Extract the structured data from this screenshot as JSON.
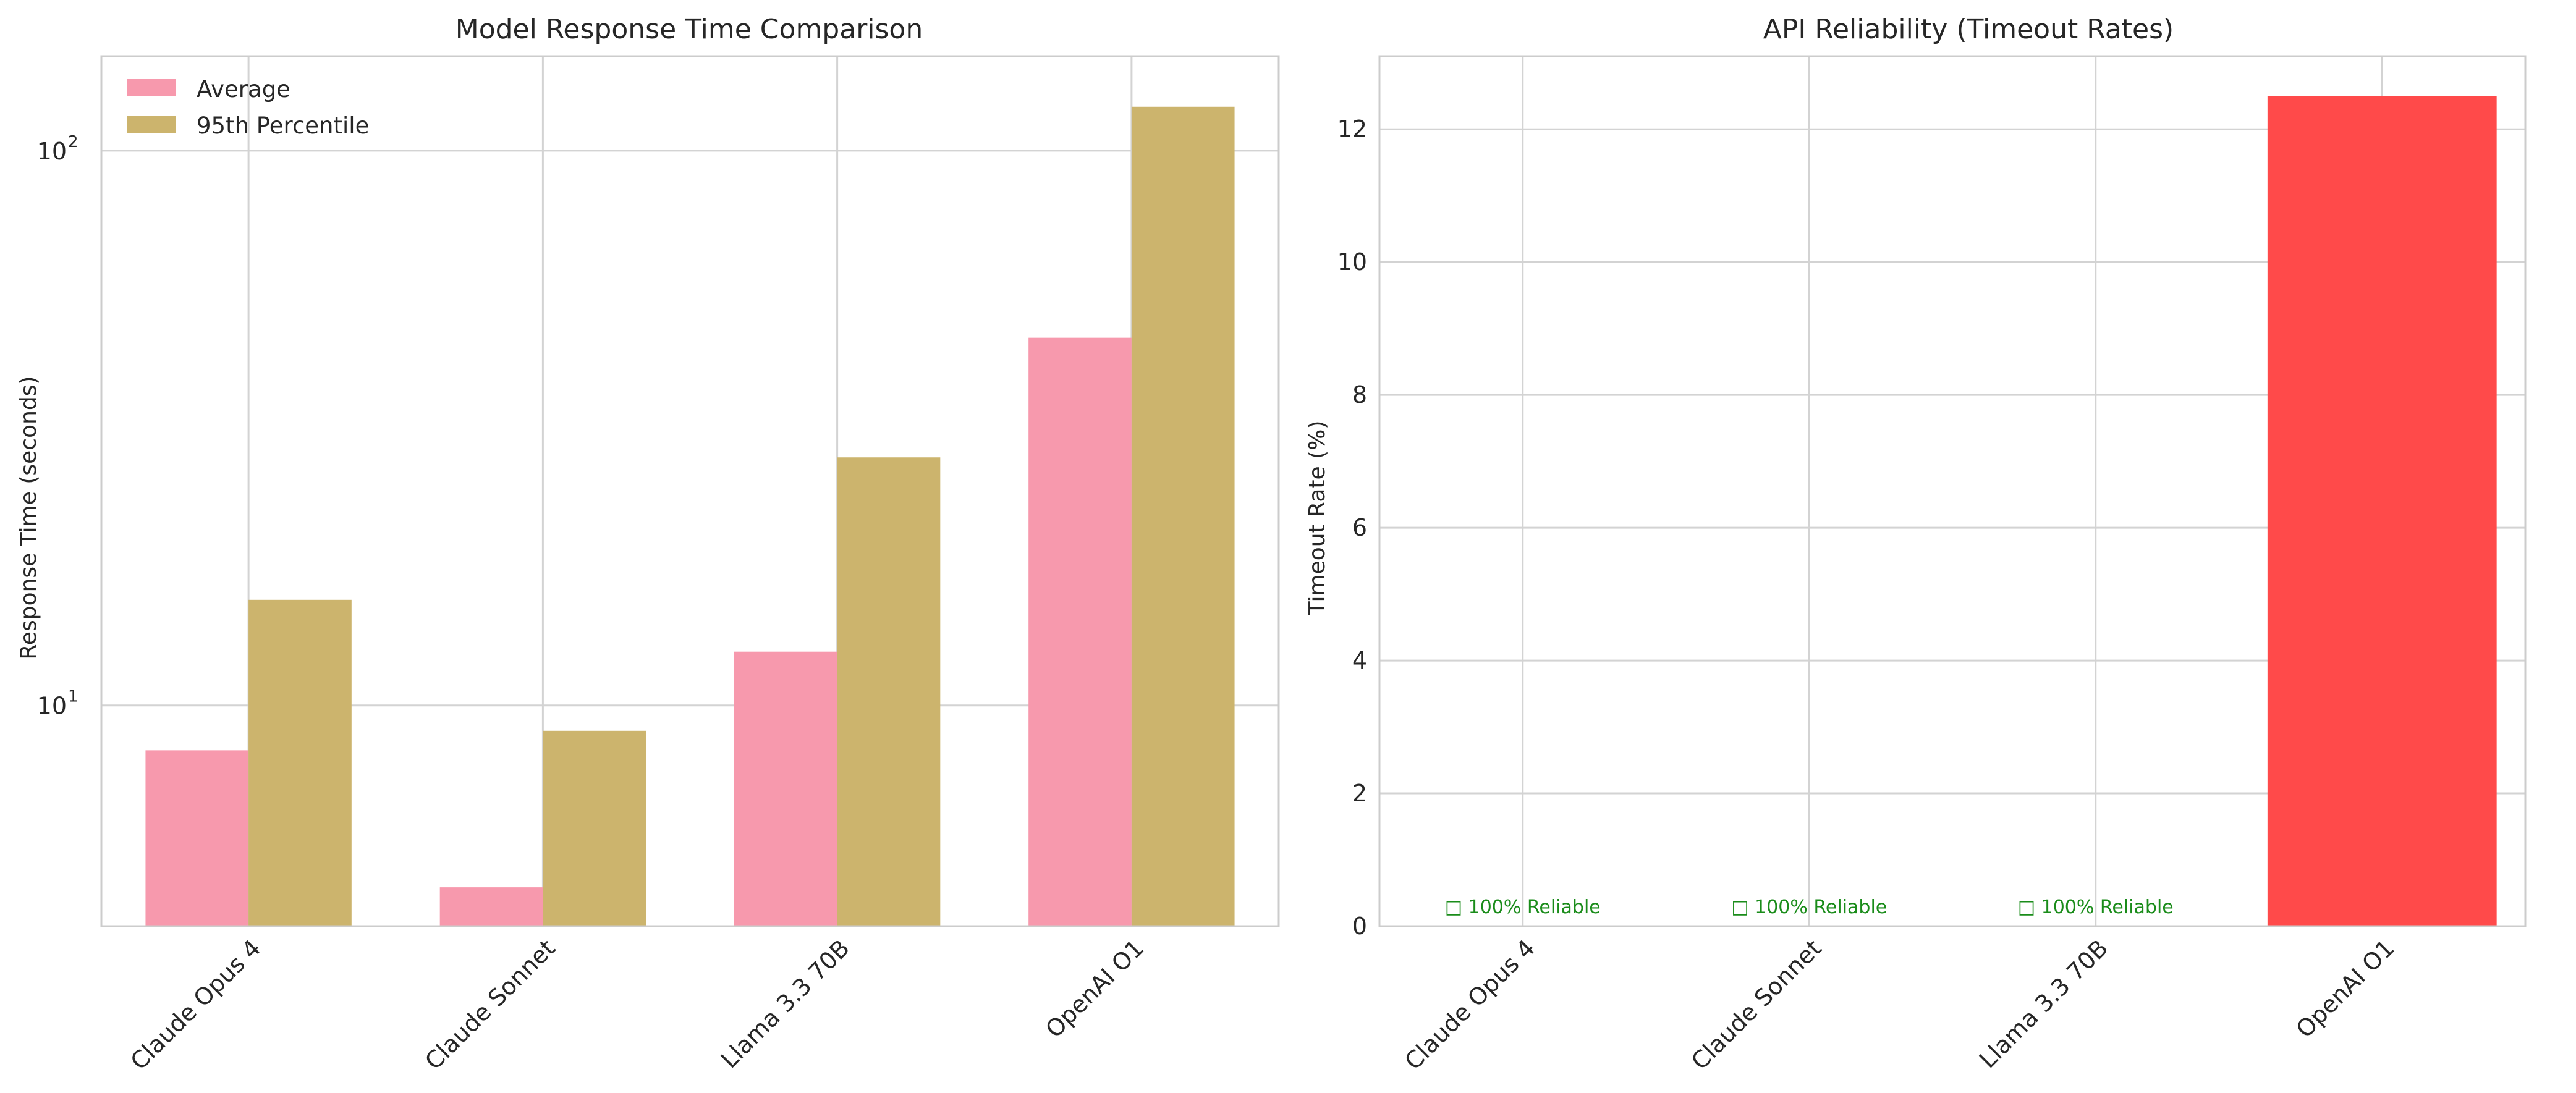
{
  "chart_data": [
    {
      "type": "bar",
      "title": "Model Response Time Comparison",
      "xlabel": "",
      "ylabel": "Response Time (seconds)",
      "yscale": "log",
      "ylim": [
        4,
        148
      ],
      "grid": true,
      "legend_position": "top-left",
      "categories": [
        "Claude Opus 4",
        "Claude Sonnet",
        "Llama 3.3 70B",
        "OpenAI O1"
      ],
      "y_ticks": [
        {
          "value": 10,
          "base": "10",
          "exp": "1"
        },
        {
          "value": 100,
          "base": "10",
          "exp": "2"
        }
      ],
      "series": [
        {
          "name": "Average",
          "color": "#f799ad",
          "values": [
            8.3,
            4.7,
            12.5,
            46
          ]
        },
        {
          "name": "95th Percentile",
          "color": "#ccb46d",
          "values": [
            15.5,
            9.0,
            28,
            120
          ]
        }
      ]
    },
    {
      "type": "bar",
      "title": "API Reliability (Timeout Rates)",
      "xlabel": "",
      "ylabel": "Timeout Rate (%)",
      "ylim": [
        0,
        13.1
      ],
      "grid": true,
      "categories": [
        "Claude Opus 4",
        "Claude Sonnet",
        "Llama 3.3 70B",
        "OpenAI O1"
      ],
      "y_ticks": [
        0,
        2,
        4,
        6,
        8,
        10,
        12
      ],
      "values": [
        0,
        0,
        0,
        12.5
      ],
      "bar_color": "#ff4a4a",
      "reliable_label_color": "#1a8c1a",
      "annotations": [
        "□ 100% Reliable",
        "□ 100% Reliable",
        "□ 100% Reliable"
      ]
    }
  ]
}
